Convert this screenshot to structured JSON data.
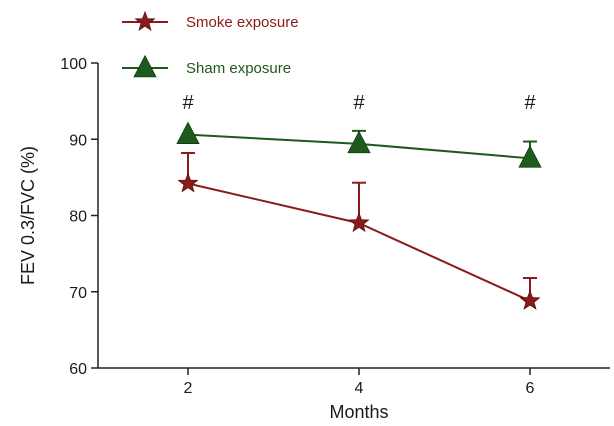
{
  "chart_data": {
    "type": "line",
    "xlabel": "Months",
    "ylabel": "FEV 0.3/FVC (%)",
    "x": [
      2,
      4,
      6
    ],
    "xlim": [
      1,
      7
    ],
    "ylim": [
      60,
      100
    ],
    "x_ticks": [
      2,
      4,
      6
    ],
    "y_ticks": [
      60,
      70,
      80,
      90,
      100
    ],
    "grid": false,
    "legend_position": "top-left",
    "series": [
      {
        "name": "Smoke exposure",
        "marker": "star",
        "color": "#8b1a1a",
        "values": [
          84.2,
          79.0,
          68.8
        ],
        "error_upper": [
          88.2,
          84.3,
          71.8
        ]
      },
      {
        "name": "Sham exposure",
        "marker": "triangle",
        "color": "#1e5a1e",
        "values": [
          90.6,
          89.4,
          87.5
        ],
        "error_upper": [
          90.6,
          91.1,
          89.7
        ]
      }
    ],
    "annotations": [
      {
        "text": "#",
        "x": 2
      },
      {
        "text": "#",
        "x": 4
      },
      {
        "text": "#",
        "x": 6
      }
    ]
  }
}
